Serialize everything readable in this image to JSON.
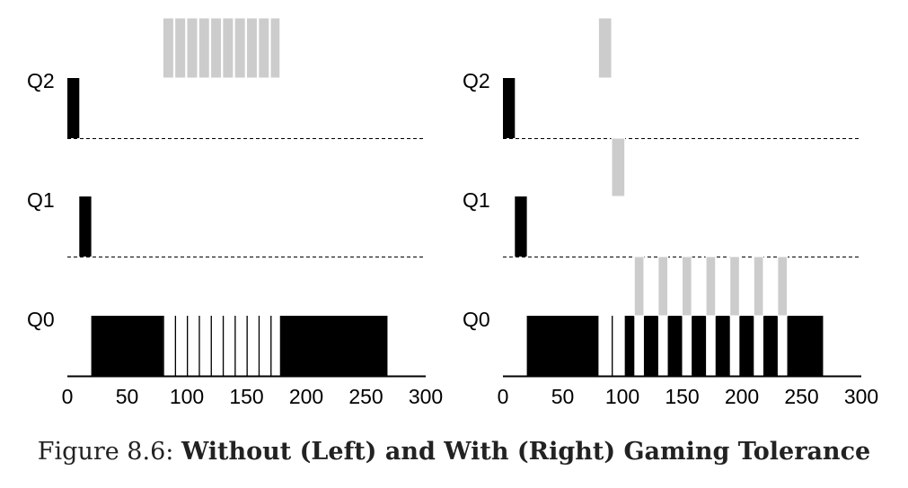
{
  "caption": {
    "label": "Figure 8.6:",
    "title": "Without (Left) and With (Right) Gaming Tolerance"
  },
  "colors": {
    "scheduled_job": "#000000",
    "gaming_job": "#cccccc",
    "divider": "#000000"
  },
  "chart_data": [
    {
      "type": "timeline",
      "panel": "left",
      "xlim": [
        0,
        300
      ],
      "x_ticks": [
        0,
        50,
        100,
        150,
        200,
        250,
        300
      ],
      "x_tick_labels": [
        "0",
        "50",
        "100",
        "150",
        "200",
        "250",
        "300"
      ],
      "queues": [
        "Q2",
        "Q1",
        "Q0"
      ],
      "series": [
        {
          "color_role": "scheduled_job",
          "segments": [
            {
              "queue": "Q2",
              "start": 0,
              "end": 10
            },
            {
              "queue": "Q1",
              "start": 10,
              "end": 20
            },
            {
              "queue": "Q0",
              "start": 20,
              "end": 80
            },
            {
              "queue": "Q0",
              "start": 80,
              "end": 81
            },
            {
              "queue": "Q0",
              "start": 90,
              "end": 91
            },
            {
              "queue": "Q0",
              "start": 100,
              "end": 101
            },
            {
              "queue": "Q0",
              "start": 110,
              "end": 111
            },
            {
              "queue": "Q0",
              "start": 120,
              "end": 121
            },
            {
              "queue": "Q0",
              "start": 130,
              "end": 131
            },
            {
              "queue": "Q0",
              "start": 140,
              "end": 141
            },
            {
              "queue": "Q0",
              "start": 150,
              "end": 151
            },
            {
              "queue": "Q0",
              "start": 160,
              "end": 161
            },
            {
              "queue": "Q0",
              "start": 170,
              "end": 171
            },
            {
              "queue": "Q0",
              "start": 178,
              "end": 268
            }
          ]
        },
        {
          "color_role": "gaming_job",
          "segments": [
            {
              "queue": "Q2",
              "start": 80,
              "end": 89
            },
            {
              "queue": "Q2",
              "start": 90,
              "end": 99
            },
            {
              "queue": "Q2",
              "start": 100,
              "end": 109
            },
            {
              "queue": "Q2",
              "start": 110,
              "end": 119
            },
            {
              "queue": "Q2",
              "start": 120,
              "end": 129
            },
            {
              "queue": "Q2",
              "start": 130,
              "end": 139
            },
            {
              "queue": "Q2",
              "start": 140,
              "end": 149
            },
            {
              "queue": "Q2",
              "start": 150,
              "end": 159
            },
            {
              "queue": "Q2",
              "start": 160,
              "end": 169
            },
            {
              "queue": "Q2",
              "start": 170,
              "end": 178
            }
          ]
        }
      ]
    },
    {
      "type": "timeline",
      "panel": "right",
      "xlim": [
        0,
        300
      ],
      "x_ticks": [
        0,
        50,
        100,
        150,
        200,
        250,
        300
      ],
      "x_tick_labels": [
        "0",
        "50",
        "100",
        "150",
        "200",
        "250",
        "300"
      ],
      "queues": [
        "Q2",
        "Q1",
        "Q0"
      ],
      "series": [
        {
          "color_role": "scheduled_job",
          "segments": [
            {
              "queue": "Q2",
              "start": 0,
              "end": 10
            },
            {
              "queue": "Q1",
              "start": 10,
              "end": 20
            },
            {
              "queue": "Q0",
              "start": 20,
              "end": 80
            },
            {
              "queue": "Q0",
              "start": 91,
              "end": 92
            },
            {
              "queue": "Q0",
              "start": 102,
              "end": 110
            },
            {
              "queue": "Q0",
              "start": 118,
              "end": 130
            },
            {
              "queue": "Q0",
              "start": 138,
              "end": 150
            },
            {
              "queue": "Q0",
              "start": 158,
              "end": 170
            },
            {
              "queue": "Q0",
              "start": 178,
              "end": 190
            },
            {
              "queue": "Q0",
              "start": 198,
              "end": 210
            },
            {
              "queue": "Q0",
              "start": 218,
              "end": 230
            },
            {
              "queue": "Q0",
              "start": 238,
              "end": 268
            }
          ]
        },
        {
          "color_role": "gaming_job",
          "segments": [
            {
              "queue": "Q2",
              "start": 80,
              "end": 91
            },
            {
              "queue": "Q1",
              "start": 91,
              "end": 102
            },
            {
              "queue": "Q0",
              "start": 110,
              "end": 118
            },
            {
              "queue": "Q0",
              "start": 130,
              "end": 138
            },
            {
              "queue": "Q0",
              "start": 150,
              "end": 158
            },
            {
              "queue": "Q0",
              "start": 170,
              "end": 178
            },
            {
              "queue": "Q0",
              "start": 190,
              "end": 198
            },
            {
              "queue": "Q0",
              "start": 210,
              "end": 218
            },
            {
              "queue": "Q0",
              "start": 230,
              "end": 238
            }
          ]
        }
      ]
    }
  ]
}
